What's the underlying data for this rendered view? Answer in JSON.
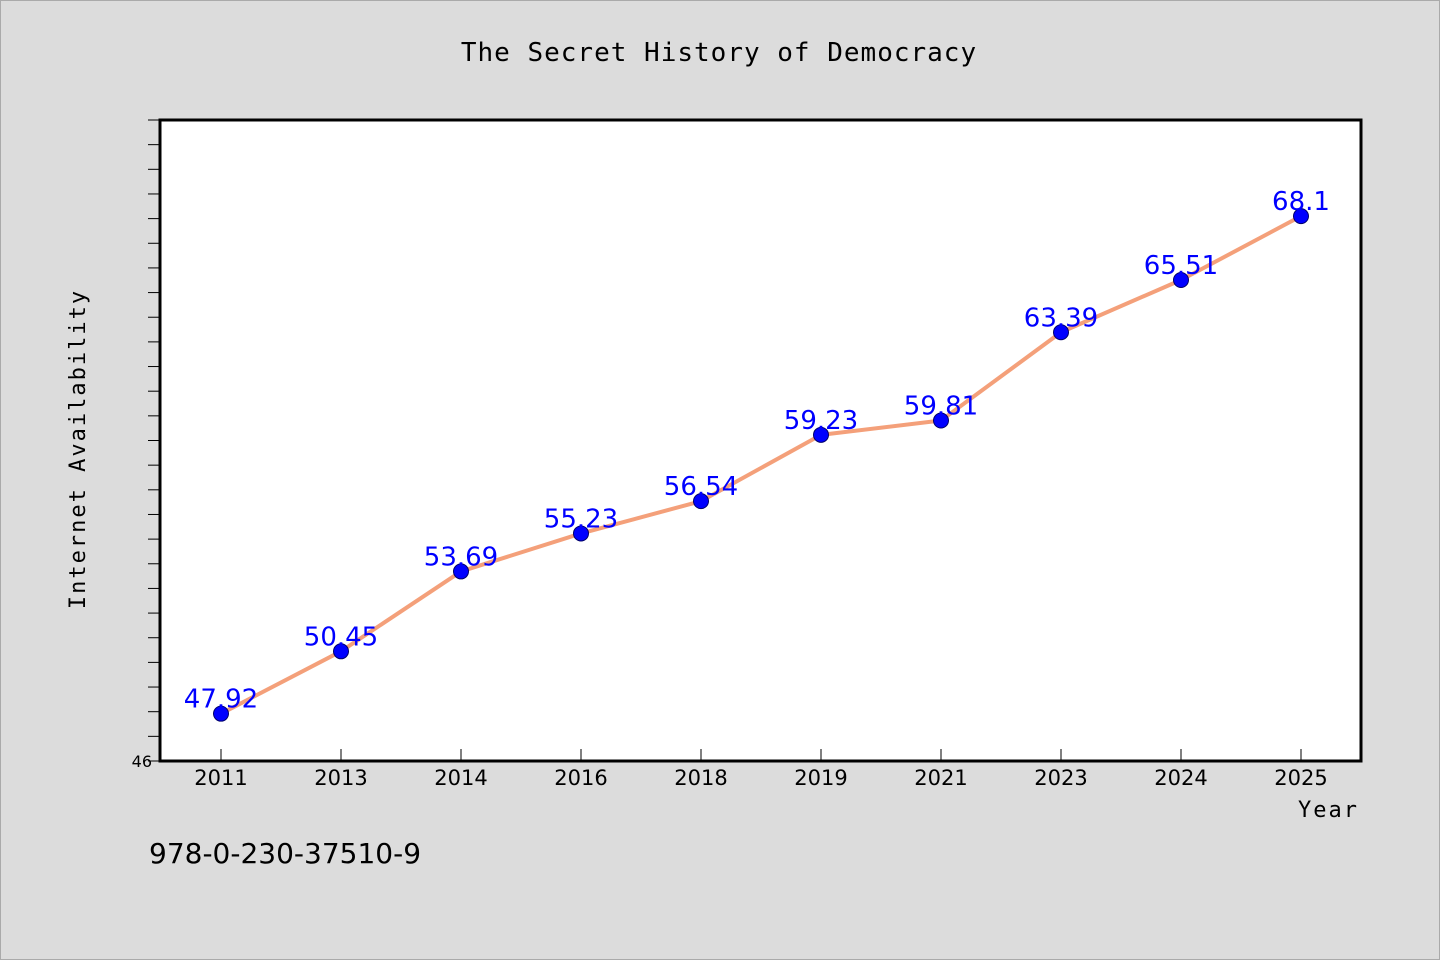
{
  "chart_data": {
    "type": "line",
    "title": "The Secret History of Democracy",
    "xlabel": "Year",
    "ylabel": "Internet Availability",
    "categories": [
      "2011",
      "2013",
      "2014",
      "2016",
      "2018",
      "2019",
      "2021",
      "2023",
      "2024",
      "2025"
    ],
    "series": [
      {
        "values": [
          47.92,
          50.45,
          53.69,
          55.23,
          56.54,
          59.23,
          59.81,
          63.39,
          65.51,
          68.1
        ]
      }
    ],
    "data_labels": [
      "47.92",
      "50.45",
      "53.69",
      "55.23",
      "56.54",
      "59.23",
      "59.81",
      "63.39",
      "65.51",
      "68.1"
    ],
    "ylim": [
      46,
      72
    ],
    "y_tick_labels": [
      "46"
    ],
    "grid": false,
    "legend": "none",
    "colors": {
      "line": "#f4a07a",
      "marker": "#0000ff",
      "data_label": "#0000ff",
      "plot_background": "#ffffff",
      "figure_background": "#dcdcdc"
    }
  },
  "footer": {
    "isbn": "978-0-230-37510-9"
  }
}
